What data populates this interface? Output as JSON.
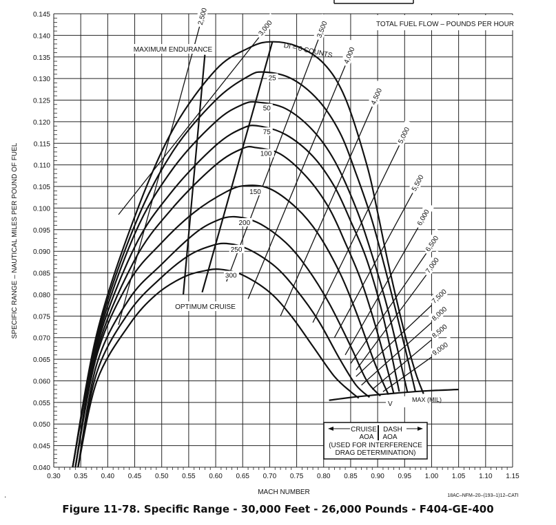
{
  "chart_data": {
    "type": "line",
    "title": "TOTAL FUEL FLOW – POUNDS PER HOUR",
    "xlabel": "MACH NUMBER",
    "ylabel": "SPECIFIC RANGE – NAUTICAL MILES PER POUND OF FUEL",
    "xlim": [
      0.3,
      1.15
    ],
    "ylim": [
      0.04,
      0.145
    ],
    "x_ticks": [
      "0.30",
      "0.35",
      "0.40",
      "0.45",
      "0.50",
      "0.55",
      "0.60",
      "0.65",
      "0.70",
      "0.75",
      "0.80",
      "0.85",
      "0.90",
      "0.95",
      "1.00",
      "1.05",
      "1.10",
      "1.15"
    ],
    "y_ticks": [
      "0.040",
      "0.045",
      "0.050",
      "0.055",
      "0.060",
      "0.065",
      "0.070",
      "0.075",
      "0.080",
      "0.085",
      "0.090",
      "0.095",
      "0.100",
      "0.105",
      "0.110",
      "0.115",
      "0.120",
      "0.125",
      "0.130",
      "0.135",
      "0.140",
      "0.145"
    ],
    "grid": true,
    "drag_index_series": [
      {
        "name": "DI = 0 COUNTS",
        "x": [
          0.335,
          0.38,
          0.45,
          0.52,
          0.6,
          0.66,
          0.7,
          0.75,
          0.8,
          0.84,
          0.88,
          0.9,
          0.92,
          0.95,
          0.97,
          0.985
        ],
        "y": [
          0.04,
          0.071,
          0.098,
          0.118,
          0.132,
          0.137,
          0.1385,
          0.1375,
          0.1335,
          0.1255,
          0.11,
          0.099,
          0.087,
          0.071,
          0.062,
          0.057
        ]
      },
      {
        "name": "25",
        "x": [
          0.335,
          0.38,
          0.45,
          0.52,
          0.6,
          0.66,
          0.69,
          0.74,
          0.79,
          0.83,
          0.86,
          0.89,
          0.92,
          0.95,
          0.97
        ],
        "y": [
          0.04,
          0.07,
          0.096,
          0.113,
          0.125,
          0.1305,
          0.1315,
          0.13,
          0.125,
          0.1175,
          0.108,
          0.097,
          0.083,
          0.068,
          0.0575
        ]
      },
      {
        "name": "50",
        "x": [
          0.335,
          0.38,
          0.45,
          0.52,
          0.6,
          0.65,
          0.68,
          0.73,
          0.78,
          0.82,
          0.86,
          0.89,
          0.92,
          0.955
        ],
        "y": [
          0.04,
          0.069,
          0.094,
          0.109,
          0.12,
          0.124,
          0.1245,
          0.123,
          0.118,
          0.111,
          0.1,
          0.089,
          0.076,
          0.0575
        ]
      },
      {
        "name": "75",
        "x": [
          0.34,
          0.38,
          0.45,
          0.52,
          0.6,
          0.65,
          0.68,
          0.73,
          0.78,
          0.82,
          0.85,
          0.88,
          0.91,
          0.94
        ],
        "y": [
          0.04,
          0.068,
          0.091,
          0.104,
          0.1145,
          0.1185,
          0.119,
          0.117,
          0.112,
          0.105,
          0.097,
          0.088,
          0.075,
          0.0575
        ]
      },
      {
        "name": "100",
        "x": [
          0.34,
          0.38,
          0.45,
          0.52,
          0.6,
          0.65,
          0.675,
          0.72,
          0.77,
          0.81,
          0.84,
          0.87,
          0.9,
          0.93
        ],
        "y": [
          0.04,
          0.067,
          0.088,
          0.1,
          0.11,
          0.1138,
          0.114,
          0.1125,
          0.107,
          0.1,
          0.092,
          0.083,
          0.071,
          0.057
        ]
      },
      {
        "name": "150",
        "x": [
          0.34,
          0.38,
          0.44,
          0.5,
          0.56,
          0.62,
          0.655,
          0.7,
          0.75,
          0.79,
          0.83,
          0.86,
          0.895,
          0.92
        ],
        "y": [
          0.04,
          0.066,
          0.083,
          0.092,
          0.099,
          0.1038,
          0.1052,
          0.1045,
          0.1,
          0.094,
          0.085,
          0.076,
          0.064,
          0.0568
        ]
      },
      {
        "name": "200",
        "x": [
          0.345,
          0.38,
          0.44,
          0.5,
          0.56,
          0.6,
          0.635,
          0.68,
          0.73,
          0.77,
          0.81,
          0.85,
          0.88,
          0.905
        ],
        "y": [
          0.04,
          0.064,
          0.079,
          0.087,
          0.094,
          0.097,
          0.098,
          0.0965,
          0.092,
          0.086,
          0.078,
          0.068,
          0.06,
          0.0565
        ]
      },
      {
        "name": "250",
        "x": [
          0.345,
          0.38,
          0.44,
          0.5,
          0.55,
          0.59,
          0.62,
          0.66,
          0.71,
          0.75,
          0.79,
          0.83,
          0.86,
          0.885
        ],
        "y": [
          0.04,
          0.062,
          0.076,
          0.084,
          0.089,
          0.0912,
          0.0918,
          0.0905,
          0.0865,
          0.081,
          0.074,
          0.065,
          0.059,
          0.0562
        ]
      },
      {
        "name": "300",
        "x": [
          0.345,
          0.38,
          0.44,
          0.49,
          0.54,
          0.58,
          0.61,
          0.65,
          0.7,
          0.74,
          0.78,
          0.82,
          0.85,
          0.865
        ],
        "y": [
          0.04,
          0.06,
          0.073,
          0.08,
          0.084,
          0.0855,
          0.0858,
          0.0845,
          0.0805,
          0.075,
          0.068,
          0.061,
          0.0575,
          0.056
        ]
      }
    ],
    "drag_index_labels": [
      "DI = 0 COUNTS",
      "25",
      "50",
      "75",
      "100",
      "150",
      "200",
      "250",
      "300"
    ],
    "fuel_flow_series": [
      {
        "name": "2,500",
        "x": [
          0.42,
          0.57
        ],
        "y": [
          0.073,
          0.142
        ]
      },
      {
        "name": "3,000",
        "x": [
          0.42,
          0.68
        ],
        "y": [
          0.0985,
          0.1395
        ]
      },
      {
        "name": "3,500",
        "x": [
          0.62,
          0.79
        ],
        "y": [
          0.083,
          0.139
        ]
      },
      {
        "name": "4,000",
        "x": [
          0.66,
          0.84
        ],
        "y": [
          0.079,
          0.133
        ]
      },
      {
        "name": "4,500",
        "x": [
          0.72,
          0.89
        ],
        "y": [
          0.075,
          0.1235
        ]
      },
      {
        "name": "5,000",
        "x": [
          0.78,
          0.94
        ],
        "y": [
          0.0735,
          0.1145
        ]
      },
      {
        "name": "5,500",
        "x": [
          0.82,
          0.965
        ],
        "y": [
          0.07,
          0.1035
        ]
      },
      {
        "name": "6,000",
        "x": [
          0.84,
          0.975
        ],
        "y": [
          0.066,
          0.0955
        ]
      },
      {
        "name": "6,500",
        "x": [
          0.85,
          0.99
        ],
        "y": [
          0.064,
          0.0895
        ]
      },
      {
        "name": "7,000",
        "x": [
          0.86,
          0.99
        ],
        "y": [
          0.0625,
          0.0845
        ]
      },
      {
        "name": "7,500",
        "x": [
          0.86,
          1.0
        ],
        "y": [
          0.061,
          0.0775
        ]
      },
      {
        "name": "8,000",
        "x": [
          0.87,
          1.0
        ],
        "y": [
          0.059,
          0.0735
        ]
      },
      {
        "name": "8,500",
        "x": [
          0.89,
          1.0
        ],
        "y": [
          0.058,
          0.0695
        ]
      },
      {
        "name": "9,000",
        "x": [
          0.91,
          1.0
        ],
        "y": [
          0.0575,
          0.0655
        ]
      }
    ],
    "maximum_endurance": {
      "label": "MAXIMUM ENDURANCE",
      "x": [
        0.54,
        0.58
      ],
      "y": [
        0.08,
        0.1355
      ]
    },
    "optimum_cruise": {
      "label": "OPTIMUM CRUISE",
      "x": [
        0.575,
        0.705
      ],
      "y": [
        0.0805,
        0.1385
      ]
    },
    "vmax": {
      "label": "MAX (MIL)",
      "prefix": "V",
      "x": [
        0.81,
        0.86,
        0.92,
        0.98,
        1.05
      ],
      "y": [
        0.0555,
        0.0563,
        0.057,
        0.0576,
        0.058
      ]
    },
    "aoa_box": {
      "left": "CRUISE",
      "right": "DASH",
      "aoa": "AOA",
      "note1": "(USED FOR INTERFERENCE",
      "note2": "DRAG DETERMINATION)"
    },
    "figure_id": "18AC–NFM–20–(193–1)12–CATI"
  },
  "caption": "Figure 11-78. Specific Range - 30,000 Feet - 26,000 Pounds - F404-GE-400",
  "stray_mark": "."
}
